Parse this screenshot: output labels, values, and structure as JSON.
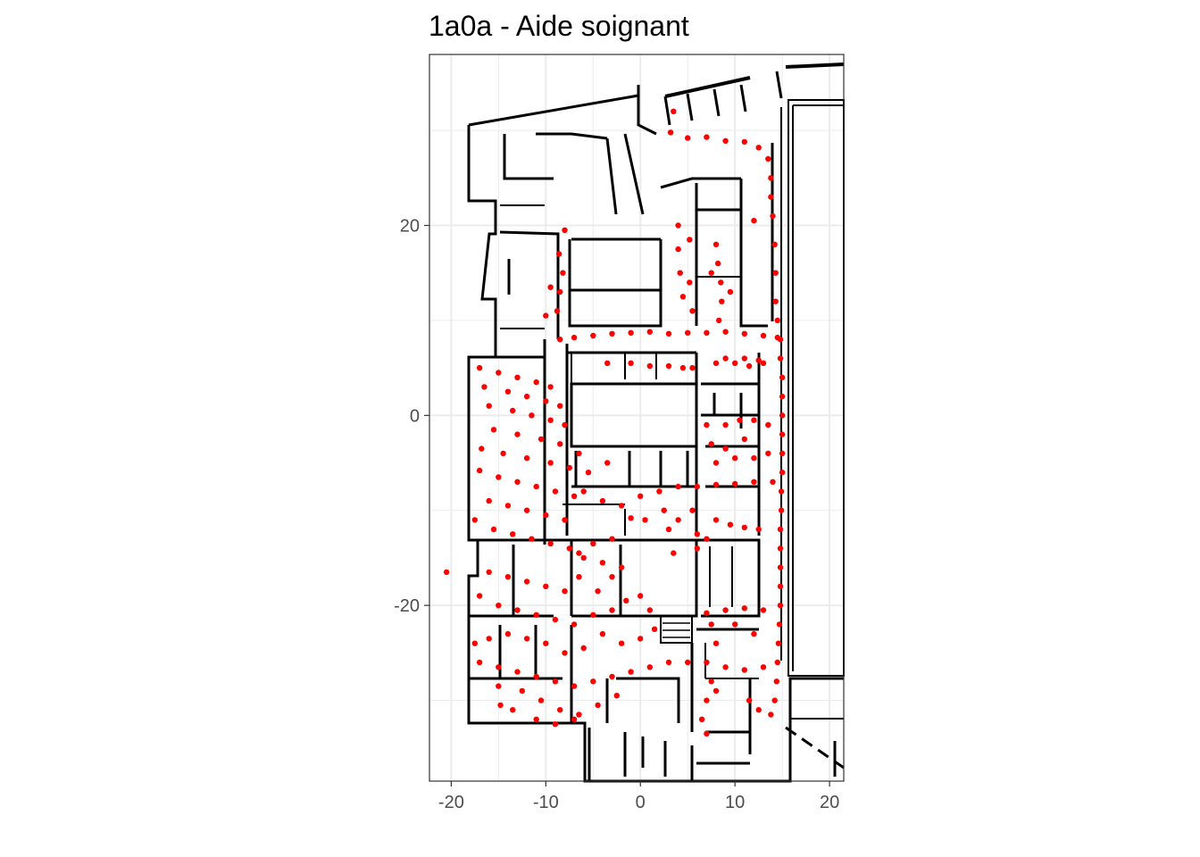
{
  "chart_data": {
    "type": "scatter",
    "title": "1a0a - Aide soignant",
    "xlabel": "",
    "ylabel": "",
    "xlim": [
      -22.3,
      21.5
    ],
    "ylim": [
      -38.5,
      38.0
    ],
    "x_ticks": [
      -20,
      -10,
      0,
      10,
      20
    ],
    "x_tick_labels": [
      "-20",
      "-10",
      "0",
      "10",
      "20"
    ],
    "y_ticks": [
      -20,
      0,
      20
    ],
    "y_tick_labels": [
      "-20",
      "0",
      "20"
    ],
    "grid": true,
    "legend": "none",
    "colors": {
      "points": "#ff0000",
      "walls": "#000000",
      "grid": "#ebebeb",
      "border": "#333333"
    },
    "background_layer": "floor-plan",
    "series": [
      {
        "points": [
          [
            3.5,
            32.0
          ],
          [
            3.2,
            29.8
          ],
          [
            5.0,
            29.2
          ],
          [
            7.0,
            29.3
          ],
          [
            9.0,
            28.9
          ],
          [
            11.0,
            28.8
          ],
          [
            12.5,
            28.2
          ],
          [
            13.5,
            27.0
          ],
          [
            13.8,
            25.0
          ],
          [
            13.8,
            23.0
          ],
          [
            14.0,
            21.0
          ],
          [
            14.2,
            18.0
          ],
          [
            14.3,
            15.0
          ],
          [
            14.3,
            12.0
          ],
          [
            14.5,
            10.0
          ],
          [
            14.8,
            8.0
          ],
          [
            14.8,
            6.0
          ],
          [
            15.0,
            4.0
          ],
          [
            15.0,
            2.0
          ],
          [
            15.0,
            0.0
          ],
          [
            15.0,
            -2.0
          ],
          [
            15.0,
            -4.0
          ],
          [
            15.0,
            -6.0
          ],
          [
            14.9,
            -8.0
          ],
          [
            14.9,
            -10.0
          ],
          [
            14.8,
            -12.0
          ],
          [
            14.8,
            -14.0
          ],
          [
            14.8,
            -16.0
          ],
          [
            14.8,
            -18.0
          ],
          [
            14.8,
            -20.0
          ],
          [
            14.7,
            -22.0
          ],
          [
            14.6,
            -24.0
          ],
          [
            14.5,
            -26.0
          ],
          [
            14.4,
            -28.0
          ],
          [
            14.2,
            -30.0
          ],
          [
            13.8,
            -31.5
          ],
          [
            12.5,
            -31.0
          ],
          [
            11.5,
            -30.0
          ],
          [
            -8.5,
            8.0
          ],
          [
            -7.0,
            8.2
          ],
          [
            -5.0,
            8.4
          ],
          [
            -3.0,
            8.6
          ],
          [
            -1.0,
            8.7
          ],
          [
            1.0,
            8.8
          ],
          [
            3.0,
            8.6
          ],
          [
            5.0,
            8.7
          ],
          [
            7.0,
            8.7
          ],
          [
            9.0,
            8.8
          ],
          [
            11.0,
            8.6
          ],
          [
            13.0,
            8.4
          ],
          [
            14.5,
            8.2
          ],
          [
            -8.0,
            19.5
          ],
          [
            -8.6,
            17.0
          ],
          [
            -8.2,
            15.0
          ],
          [
            -8.5,
            13.0
          ],
          [
            -8.8,
            11.0
          ],
          [
            -10.0,
            10.5
          ],
          [
            -9.5,
            13.5
          ],
          [
            4.0,
            20.0
          ],
          [
            4.0,
            17.5
          ],
          [
            4.2,
            15.0
          ],
          [
            4.5,
            12.5
          ],
          [
            5.2,
            18.5
          ],
          [
            5.5,
            11.0
          ],
          [
            8.0,
            18.0
          ],
          [
            8.2,
            16.0
          ],
          [
            8.5,
            14.0
          ],
          [
            8.6,
            12.0
          ],
          [
            8.3,
            10.0
          ],
          [
            7.5,
            15.0
          ],
          [
            9.5,
            13.0
          ],
          [
            9.0,
            6.0
          ],
          [
            11.0,
            6.0
          ],
          [
            12.5,
            5.8
          ],
          [
            8.0,
            5.5
          ],
          [
            10.0,
            5.5
          ],
          [
            11.5,
            5.2
          ],
          [
            13.0,
            5.5
          ],
          [
            -3.5,
            5.5
          ],
          [
            -1.0,
            5.5
          ],
          [
            1.0,
            5.2
          ],
          [
            3.0,
            5.2
          ],
          [
            4.5,
            5.0
          ],
          [
            5.5,
            5.0
          ],
          [
            -17.0,
            5.0
          ],
          [
            -15.0,
            4.5
          ],
          [
            -13.0,
            4.0
          ],
          [
            -11.0,
            3.5
          ],
          [
            -9.5,
            3.0
          ],
          [
            -16.5,
            3.0
          ],
          [
            -14.0,
            2.5
          ],
          [
            -12.0,
            2.0
          ],
          [
            -10.0,
            1.5
          ],
          [
            -8.5,
            1.0
          ],
          [
            -16.0,
            1.0
          ],
          [
            -13.5,
            0.5
          ],
          [
            -11.5,
            0.0
          ],
          [
            -9.5,
            -0.5
          ],
          [
            -8.0,
            -1.0
          ],
          [
            -15.5,
            -1.5
          ],
          [
            -13.0,
            -2.0
          ],
          [
            -10.5,
            -2.5
          ],
          [
            -8.5,
            -3.0
          ],
          [
            -16.8,
            -3.5
          ],
          [
            -14.5,
            -4.0
          ],
          [
            -12.0,
            -4.5
          ],
          [
            -9.5,
            -5.0
          ],
          [
            -7.5,
            -5.5
          ],
          [
            -17.0,
            -5.8
          ],
          [
            -15.0,
            -6.5
          ],
          [
            -13.0,
            -7.0
          ],
          [
            -11.0,
            -7.5
          ],
          [
            -9.0,
            -8.0
          ],
          [
            -7.0,
            -8.5
          ],
          [
            -16.0,
            -9.0
          ],
          [
            -14.0,
            -9.5
          ],
          [
            -12.0,
            -10.0
          ],
          [
            -10.0,
            -10.5
          ],
          [
            -8.0,
            -11.0
          ],
          [
            -6.0,
            -8.0
          ],
          [
            -4.0,
            -9.0
          ],
          [
            -2.0,
            -9.5
          ],
          [
            0.0,
            -8.5
          ],
          [
            2.0,
            -8.0
          ],
          [
            4.0,
            -7.5
          ],
          [
            6.0,
            -7.5
          ],
          [
            8.0,
            -7.3
          ],
          [
            10.0,
            -7.2
          ],
          [
            12.0,
            -7.0
          ],
          [
            14.0,
            -7.0
          ],
          [
            -5.5,
            -6.0
          ],
          [
            -3.5,
            -5.0
          ],
          [
            -6.5,
            -4.0
          ],
          [
            -17.5,
            -11.0
          ],
          [
            -15.5,
            -12.0
          ],
          [
            -13.5,
            -12.5
          ],
          [
            -11.5,
            -13.0
          ],
          [
            -9.5,
            -13.5
          ],
          [
            -7.5,
            -14.0
          ],
          [
            -16.0,
            -16.5
          ],
          [
            -14.0,
            -17.0
          ],
          [
            -12.0,
            -17.5
          ],
          [
            -10.0,
            -18.0
          ],
          [
            -8.0,
            -18.5
          ],
          [
            -6.5,
            -17.0
          ],
          [
            -17.0,
            -19.0
          ],
          [
            -15.0,
            -20.0
          ],
          [
            -13.0,
            -20.5
          ],
          [
            -11.0,
            -21.0
          ],
          [
            -9.0,
            -21.5
          ],
          [
            -7.0,
            -22.0
          ],
          [
            -5.0,
            -21.0
          ],
          [
            -3.0,
            -20.5
          ],
          [
            -1.5,
            -19.5
          ],
          [
            0.0,
            -19.0
          ],
          [
            1.0,
            -20.5
          ],
          [
            -4.0,
            -23.0
          ],
          [
            -2.0,
            -24.0
          ],
          [
            0.0,
            -23.5
          ],
          [
            1.5,
            -22.5
          ],
          [
            -6.0,
            -24.5
          ],
          [
            -8.0,
            -25.0
          ],
          [
            -10.0,
            -24.0
          ],
          [
            -12.0,
            -23.5
          ],
          [
            -14.0,
            -23.0
          ],
          [
            -16.0,
            -23.5
          ],
          [
            -17.5,
            -24.0
          ],
          [
            -17.0,
            -26.0
          ],
          [
            -15.0,
            -26.5
          ],
          [
            -13.0,
            -27.0
          ],
          [
            -11.0,
            -27.5
          ],
          [
            -9.0,
            -28.0
          ],
          [
            -7.0,
            -28.5
          ],
          [
            -5.0,
            -28.0
          ],
          [
            -3.0,
            -27.5
          ],
          [
            -1.0,
            -27.0
          ],
          [
            1.0,
            -26.5
          ],
          [
            3.0,
            -26.0
          ],
          [
            5.0,
            -26.0
          ],
          [
            7.0,
            -26.0
          ],
          [
            9.0,
            -26.5
          ],
          [
            11.0,
            -26.8
          ],
          [
            13.0,
            -26.5
          ],
          [
            -15.0,
            -28.5
          ],
          [
            -12.5,
            -29.0
          ],
          [
            -10.5,
            -30.0
          ],
          [
            -8.5,
            -31.0
          ],
          [
            -6.5,
            -31.5
          ],
          [
            -4.5,
            -30.5
          ],
          [
            -2.5,
            -29.5
          ],
          [
            -13.5,
            -31.0
          ],
          [
            -11.0,
            -32.0
          ],
          [
            -9.0,
            -32.5
          ],
          [
            -7.0,
            -32.0
          ],
          [
            7.0,
            -20.8
          ],
          [
            9.0,
            -20.5
          ],
          [
            11.0,
            -20.3
          ],
          [
            13.0,
            -20.5
          ],
          [
            7.5,
            -22.0
          ],
          [
            8.0,
            -24.0
          ],
          [
            7.5,
            -28.0
          ],
          [
            7.0,
            -30.0
          ],
          [
            6.5,
            -32.0
          ],
          [
            7.0,
            -33.5
          ],
          [
            8.0,
            -29.0
          ],
          [
            10.0,
            -22.0
          ],
          [
            12.0,
            -23.0
          ],
          [
            7.0,
            -1.0
          ],
          [
            7.5,
            -3.0
          ],
          [
            8.0,
            -5.0
          ],
          [
            9.0,
            -1.0
          ],
          [
            10.5,
            -0.5
          ],
          [
            12.0,
            -0.5
          ],
          [
            13.5,
            -1.0
          ],
          [
            10.0,
            -4.5
          ],
          [
            12.0,
            -4.5
          ],
          [
            13.5,
            -4.0
          ],
          [
            9.0,
            -3.5
          ],
          [
            11.0,
            -2.5
          ],
          [
            8.0,
            -11.0
          ],
          [
            9.5,
            -11.5
          ],
          [
            11.0,
            -11.8
          ],
          [
            12.5,
            -12.0
          ],
          [
            7.0,
            -13.0
          ],
          [
            5.5,
            -10.0
          ],
          [
            4.0,
            -11.0
          ],
          [
            3.0,
            -12.0
          ],
          [
            6.0,
            -12.5
          ],
          [
            2.5,
            -10.0
          ],
          [
            0.5,
            -11.0
          ],
          [
            -1.0,
            -10.8
          ],
          [
            -5.0,
            -13.5
          ],
          [
            -4.0,
            -15.5
          ],
          [
            -3.0,
            -17.0
          ],
          [
            -2.0,
            -16.0
          ],
          [
            -4.5,
            -18.5
          ],
          [
            -6.0,
            -15.0
          ],
          [
            3.5,
            -14.5
          ],
          [
            -20.5,
            -16.5
          ],
          [
            -14.8,
            -30.5
          ],
          [
            6.0,
            -14.0
          ],
          [
            5.2,
            14.0
          ],
          [
            12.0,
            20.5
          ],
          [
            -6.5,
            -14.5
          ],
          [
            -3.0,
            -13.0
          ]
        ]
      }
    ]
  }
}
